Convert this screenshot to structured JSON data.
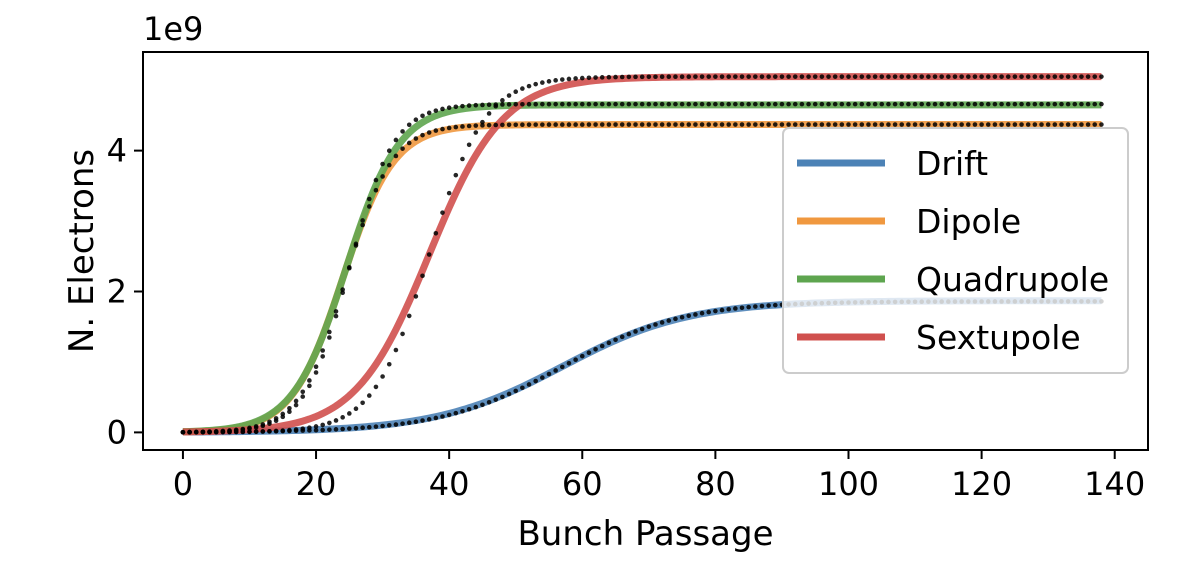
{
  "chart_data": {
    "type": "line",
    "title": "",
    "xlabel": "Bunch Passage",
    "ylabel": "N. Electrons",
    "y_offset_label": "1e9",
    "xlim": [
      -6,
      145
    ],
    "ylim": [
      -0.25,
      5.4
    ],
    "y_scale_factor": 1000000000,
    "xticks": [
      0,
      20,
      40,
      60,
      80,
      100,
      120,
      140
    ],
    "yticks": [
      0,
      2,
      4
    ],
    "grid": false,
    "legend_position": "right",
    "series": [
      {
        "name": "Drift",
        "color": "#4c82b6",
        "fit": {
          "L": 1.87,
          "x0": 57,
          "k": 0.105
        },
        "data": {
          "L": 1.86,
          "x0": 57,
          "k": 0.11
        }
      },
      {
        "name": "Dipole",
        "color": "#f0983f",
        "fit": {
          "L": 4.37,
          "x0": 24,
          "k": 0.26
        },
        "data": {
          "L": 4.37,
          "x0": 24.5,
          "k": 0.29
        }
      },
      {
        "name": "Quadrupole",
        "color": "#5ea54f",
        "fit": {
          "L": 4.65,
          "x0": 24.5,
          "k": 0.25
        },
        "data": {
          "L": 4.66,
          "x0": 25,
          "k": 0.3
        }
      },
      {
        "name": "Sextupole",
        "color": "#d0504e",
        "fit": {
          "L": 5.05,
          "x0": 37,
          "k": 0.18
        },
        "data": {
          "L": 5.05,
          "x0": 37,
          "k": 0.24
        }
      }
    ],
    "x_max": 138
  }
}
